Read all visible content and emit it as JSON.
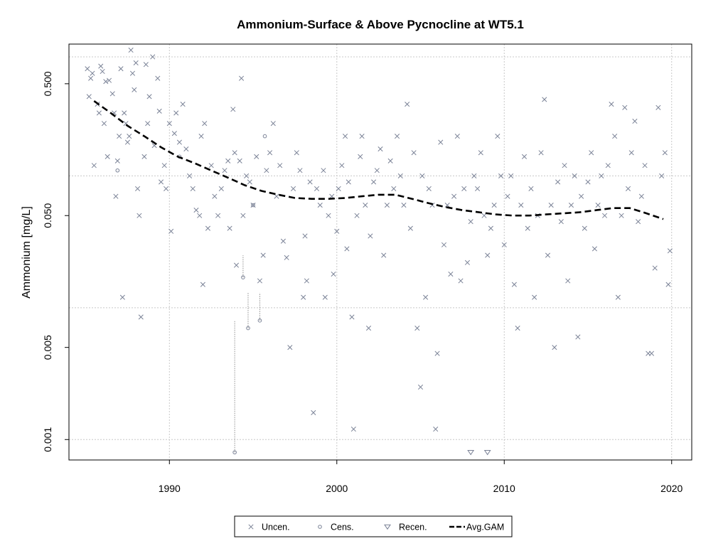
{
  "chart_data": {
    "type": "scatter",
    "title": "Ammonium-Surface & Above Pycnocline at WT5.1",
    "xlabel": "",
    "ylabel": "Ammonium [mg/L]",
    "y_scale": "log",
    "xlim": [
      1984.0,
      2021.2
    ],
    "ylim": [
      0.0007,
      1.0
    ],
    "x_ticks": [
      1990,
      2000,
      2010,
      2020
    ],
    "y_ticks": [
      0.001,
      0.005,
      0.05,
      0.5
    ],
    "y_tick_labels": [
      "0.001",
      "0.005",
      "0.050",
      "0.500"
    ],
    "x_gridlines": [
      1990,
      2000,
      2010,
      2020
    ],
    "y_gridlines": [
      0.001,
      0.01,
      0.1,
      0.8
    ],
    "grid": true,
    "legend_position": "bottom-center",
    "colors": {
      "points": "#7a8296",
      "gam": "#000000",
      "grid": "#c8c8c8",
      "censored_line": "#909090"
    },
    "series": [
      {
        "name": "Uncen.",
        "marker": "x",
        "points": [
          [
            1985.1,
            0.65
          ],
          [
            1985.2,
            0.4
          ],
          [
            1985.3,
            0.55
          ],
          [
            1985.4,
            0.6
          ],
          [
            1985.5,
            0.12
          ],
          [
            1985.7,
            0.35
          ],
          [
            1985.8,
            0.3
          ],
          [
            1985.9,
            0.68
          ],
          [
            1986.0,
            0.62
          ],
          [
            1986.1,
            0.25
          ],
          [
            1986.2,
            0.52
          ],
          [
            1986.3,
            0.14
          ],
          [
            1986.4,
            0.53
          ],
          [
            1986.6,
            0.42
          ],
          [
            1986.7,
            0.3
          ],
          [
            1986.8,
            0.07
          ],
          [
            1986.9,
            0.13
          ],
          [
            1987.0,
            0.2
          ],
          [
            1987.1,
            0.65
          ],
          [
            1987.2,
            0.012
          ],
          [
            1987.3,
            0.3
          ],
          [
            1987.4,
            0.25
          ],
          [
            1987.5,
            0.18
          ],
          [
            1987.6,
            0.2
          ],
          [
            1987.7,
            0.9
          ],
          [
            1987.8,
            0.6
          ],
          [
            1987.9,
            0.45
          ],
          [
            1988.0,
            0.72
          ],
          [
            1988.1,
            0.08
          ],
          [
            1988.2,
            0.05
          ],
          [
            1988.3,
            0.0085
          ],
          [
            1988.5,
            0.14
          ],
          [
            1988.6,
            0.7
          ],
          [
            1988.7,
            0.25
          ],
          [
            1988.8,
            0.4
          ],
          [
            1989.0,
            0.8
          ],
          [
            1989.1,
            0.17
          ],
          [
            1989.3,
            0.55
          ],
          [
            1989.4,
            0.31
          ],
          [
            1989.5,
            0.09
          ],
          [
            1989.7,
            0.12
          ],
          [
            1989.8,
            0.08
          ],
          [
            1990.0,
            0.25
          ],
          [
            1990.1,
            0.038
          ],
          [
            1990.3,
            0.21
          ],
          [
            1990.4,
            0.3
          ],
          [
            1990.6,
            0.18
          ],
          [
            1990.8,
            0.35
          ],
          [
            1991.0,
            0.16
          ],
          [
            1991.2,
            0.1
          ],
          [
            1991.4,
            0.08
          ],
          [
            1991.6,
            0.055
          ],
          [
            1991.8,
            0.05
          ],
          [
            1991.9,
            0.2
          ],
          [
            1992.0,
            0.015
          ],
          [
            1992.1,
            0.25
          ],
          [
            1992.3,
            0.04
          ],
          [
            1992.5,
            0.12
          ],
          [
            1992.7,
            0.07
          ],
          [
            1992.9,
            0.05
          ],
          [
            1993.1,
            0.08
          ],
          [
            1993.3,
            0.11
          ],
          [
            1993.5,
            0.13
          ],
          [
            1993.6,
            0.04
          ],
          [
            1993.8,
            0.32
          ],
          [
            1993.9,
            0.15
          ],
          [
            1994.0,
            0.021
          ],
          [
            1994.2,
            0.13
          ],
          [
            1994.3,
            0.55
          ],
          [
            1994.4,
            0.05
          ],
          [
            1994.6,
            0.1
          ],
          [
            1994.8,
            0.09
          ],
          [
            1995.0,
            0.06
          ],
          [
            1995.2,
            0.14
          ],
          [
            1995.4,
            0.016
          ],
          [
            1995.6,
            0.025
          ],
          [
            1995.8,
            0.11
          ],
          [
            1996.0,
            0.15
          ],
          [
            1996.2,
            0.25
          ],
          [
            1996.4,
            0.07
          ],
          [
            1996.6,
            0.12
          ],
          [
            1996.8,
            0.032
          ],
          [
            1997.0,
            0.024
          ],
          [
            1997.2,
            0.005
          ],
          [
            1997.4,
            0.08
          ],
          [
            1997.6,
            0.15
          ],
          [
            1997.8,
            0.11
          ],
          [
            1998.0,
            0.012
          ],
          [
            1998.1,
            0.035
          ],
          [
            1998.2,
            0.016
          ],
          [
            1998.4,
            0.09
          ],
          [
            1998.6,
            0.0016
          ],
          [
            1998.8,
            0.08
          ],
          [
            1999.0,
            0.06
          ],
          [
            1999.2,
            0.11
          ],
          [
            1999.3,
            0.012
          ],
          [
            1999.5,
            0.05
          ],
          [
            1999.7,
            0.07
          ],
          [
            1999.8,
            0.018
          ],
          [
            2000.0,
            0.038
          ],
          [
            2000.1,
            0.08
          ],
          [
            2000.3,
            0.12
          ],
          [
            2000.5,
            0.2
          ],
          [
            2000.6,
            0.028
          ],
          [
            2000.7,
            0.09
          ],
          [
            2000.9,
            0.0085
          ],
          [
            2001.0,
            0.0012
          ],
          [
            2001.2,
            0.05
          ],
          [
            2001.4,
            0.14
          ],
          [
            2001.5,
            0.2
          ],
          [
            2001.7,
            0.06
          ],
          [
            2001.9,
            0.007
          ],
          [
            2002.0,
            0.035
          ],
          [
            2002.2,
            0.09
          ],
          [
            2002.4,
            0.11
          ],
          [
            2002.6,
            0.16
          ],
          [
            2002.8,
            0.025
          ],
          [
            2003.0,
            0.06
          ],
          [
            2003.2,
            0.13
          ],
          [
            2003.4,
            0.08
          ],
          [
            2003.6,
            0.2
          ],
          [
            2003.8,
            0.1
          ],
          [
            2004.0,
            0.06
          ],
          [
            2004.2,
            0.35
          ],
          [
            2004.4,
            0.04
          ],
          [
            2004.6,
            0.15
          ],
          [
            2004.8,
            0.007
          ],
          [
            2005.0,
            0.0025
          ],
          [
            2005.1,
            0.1
          ],
          [
            2005.3,
            0.012
          ],
          [
            2005.5,
            0.08
          ],
          [
            2005.7,
            0.06
          ],
          [
            2005.9,
            0.0012
          ],
          [
            2006.0,
            0.0045
          ],
          [
            2006.2,
            0.18
          ],
          [
            2006.4,
            0.03
          ],
          [
            2006.6,
            0.06
          ],
          [
            2006.8,
            0.018
          ],
          [
            2007.0,
            0.07
          ],
          [
            2007.2,
            0.2
          ],
          [
            2007.4,
            0.016
          ],
          [
            2007.6,
            0.08
          ],
          [
            2007.8,
            0.022
          ],
          [
            2008.0,
            0.045
          ],
          [
            2008.2,
            0.1
          ],
          [
            2008.4,
            0.08
          ],
          [
            2008.6,
            0.15
          ],
          [
            2008.8,
            0.05
          ],
          [
            2009.0,
            0.025
          ],
          [
            2009.2,
            0.04
          ],
          [
            2009.4,
            0.06
          ],
          [
            2009.6,
            0.2
          ],
          [
            2009.8,
            0.1
          ],
          [
            2010.0,
            0.03
          ],
          [
            2010.2,
            0.07
          ],
          [
            2010.4,
            0.1
          ],
          [
            2010.6,
            0.015
          ],
          [
            2010.8,
            0.007
          ],
          [
            2011.0,
            0.06
          ],
          [
            2011.2,
            0.14
          ],
          [
            2011.4,
            0.04
          ],
          [
            2011.6,
            0.08
          ],
          [
            2011.8,
            0.012
          ],
          [
            2012.0,
            0.05
          ],
          [
            2012.2,
            0.15
          ],
          [
            2012.4,
            0.38
          ],
          [
            2012.6,
            0.025
          ],
          [
            2012.8,
            0.06
          ],
          [
            2013.0,
            0.005
          ],
          [
            2013.2,
            0.09
          ],
          [
            2013.4,
            0.045
          ],
          [
            2013.6,
            0.12
          ],
          [
            2013.8,
            0.016
          ],
          [
            2014.0,
            0.06
          ],
          [
            2014.2,
            0.1
          ],
          [
            2014.4,
            0.006
          ],
          [
            2014.6,
            0.07
          ],
          [
            2014.8,
            0.04
          ],
          [
            2015.0,
            0.09
          ],
          [
            2015.2,
            0.15
          ],
          [
            2015.4,
            0.028
          ],
          [
            2015.6,
            0.06
          ],
          [
            2015.8,
            0.1
          ],
          [
            2016.0,
            0.05
          ],
          [
            2016.2,
            0.12
          ],
          [
            2016.4,
            0.35
          ],
          [
            2016.6,
            0.2
          ],
          [
            2016.8,
            0.012
          ],
          [
            2017.0,
            0.05
          ],
          [
            2017.2,
            0.33
          ],
          [
            2017.4,
            0.08
          ],
          [
            2017.6,
            0.15
          ],
          [
            2017.8,
            0.26
          ],
          [
            2018.0,
            0.045
          ],
          [
            2018.2,
            0.07
          ],
          [
            2018.4,
            0.12
          ],
          [
            2018.6,
            0.0045
          ],
          [
            2018.8,
            0.0045
          ],
          [
            2019.0,
            0.02
          ],
          [
            2019.2,
            0.33
          ],
          [
            2019.4,
            0.1
          ],
          [
            2019.6,
            0.15
          ],
          [
            2019.8,
            0.015
          ],
          [
            2019.9,
            0.027
          ]
        ]
      },
      {
        "name": "Cens.",
        "marker": "circle",
        "points": [
          [
            1986.9,
            0.11
          ],
          [
            1990.6,
            0.14
          ],
          [
            1993.9,
            0.0008
          ],
          [
            1994.4,
            0.017
          ],
          [
            1994.7,
            0.007
          ],
          [
            1995.0,
            0.06
          ],
          [
            1995.4,
            0.008
          ],
          [
            1995.7,
            0.2
          ]
        ]
      },
      {
        "name": "Recen.",
        "marker": "triangle-down",
        "points": [
          [
            2008.0,
            0.0008
          ],
          [
            2009.0,
            0.0008
          ]
        ]
      },
      {
        "name": "Avg.GAM",
        "type": "line",
        "points": [
          [
            1985.5,
            0.37
          ],
          [
            1986.5,
            0.3
          ],
          [
            1987.5,
            0.24
          ],
          [
            1988.5,
            0.2
          ],
          [
            1989.5,
            0.165
          ],
          [
            1990.5,
            0.14
          ],
          [
            1991.5,
            0.125
          ],
          [
            1992.5,
            0.11
          ],
          [
            1993.5,
            0.097
          ],
          [
            1994.5,
            0.085
          ],
          [
            1995.5,
            0.077
          ],
          [
            1996.5,
            0.072
          ],
          [
            1997.5,
            0.068
          ],
          [
            1998.5,
            0.067
          ],
          [
            1999.5,
            0.067
          ],
          [
            2000.5,
            0.068
          ],
          [
            2001.5,
            0.07
          ],
          [
            2002.5,
            0.072
          ],
          [
            2003.5,
            0.072
          ],
          [
            2004.5,
            0.067
          ],
          [
            2005.5,
            0.062
          ],
          [
            2006.5,
            0.058
          ],
          [
            2007.5,
            0.055
          ],
          [
            2008.5,
            0.053
          ],
          [
            2009.5,
            0.051
          ],
          [
            2010.5,
            0.05
          ],
          [
            2011.5,
            0.05
          ],
          [
            2012.5,
            0.051
          ],
          [
            2013.5,
            0.052
          ],
          [
            2014.5,
            0.053
          ],
          [
            2015.5,
            0.055
          ],
          [
            2016.5,
            0.057
          ],
          [
            2017.5,
            0.057
          ],
          [
            2018.5,
            0.052
          ],
          [
            2019.5,
            0.047
          ]
        ]
      }
    ],
    "censored_bars": [
      [
        1993.9,
        0.0008,
        0.008
      ],
      [
        1994.4,
        0.017,
        0.025
      ],
      [
        1994.7,
        0.007,
        0.013
      ],
      [
        1995.4,
        0.008,
        0.013
      ]
    ]
  }
}
